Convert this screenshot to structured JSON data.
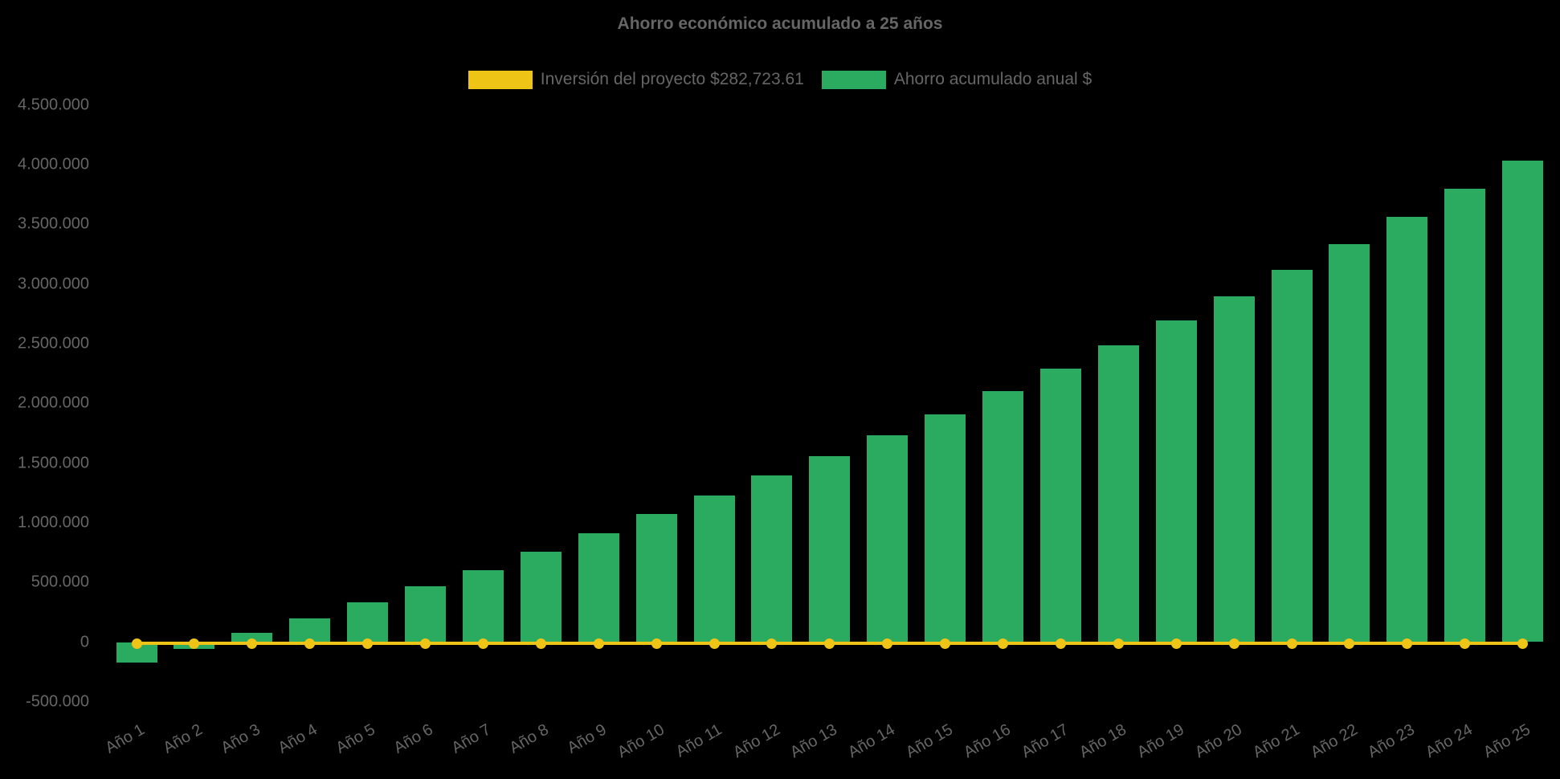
{
  "chart_data": {
    "type": "bar",
    "title": "Ahorro económico acumulado a 25 años",
    "categories": [
      "Año 1",
      "Año 2",
      "Año 3",
      "Año 4",
      "Año 5",
      "Año 6",
      "Año 7",
      "Año 8",
      "Año 9",
      "Año 10",
      "Año 11",
      "Año 12",
      "Año 13",
      "Año 14",
      "Año 15",
      "Año 16",
      "Año 17",
      "Año 18",
      "Año 19",
      "Año 20",
      "Año 21",
      "Año 22",
      "Año 23",
      "Año 24",
      "Año 25"
    ],
    "series": [
      {
        "name": "Inversión del proyecto $282,723.61",
        "type": "line",
        "color": "#EEC417",
        "constant_value": 0
      },
      {
        "name": "Ahorro acumulado anual $",
        "type": "bar",
        "color": "#2BAB60",
        "values": [
          -170000,
          -60000,
          75000,
          200000,
          330000,
          465000,
          605000,
          760000,
          910000,
          1070000,
          1225000,
          1395000,
          1560000,
          1735000,
          1910000,
          2100000,
          2290000,
          2485000,
          2695000,
          2895000,
          3120000,
          3335000,
          3565000,
          3800000,
          4035000
        ]
      }
    ],
    "xlabel": "",
    "ylabel": "",
    "ylim": [
      -500000,
      4500000
    ],
    "y_tick_step": 500000,
    "y_tick_labels": [
      "4.500.000",
      "4.000.000",
      "3.500.000",
      "3.000.000",
      "2.500.000",
      "2.000.000",
      "1.500.000",
      "1.000.000",
      "500.000",
      "0",
      "-500.000"
    ],
    "x_tick_rotation_deg": -30,
    "legend_position": "top",
    "grid": false,
    "background_color": "#000000",
    "text_color": "#666666"
  }
}
